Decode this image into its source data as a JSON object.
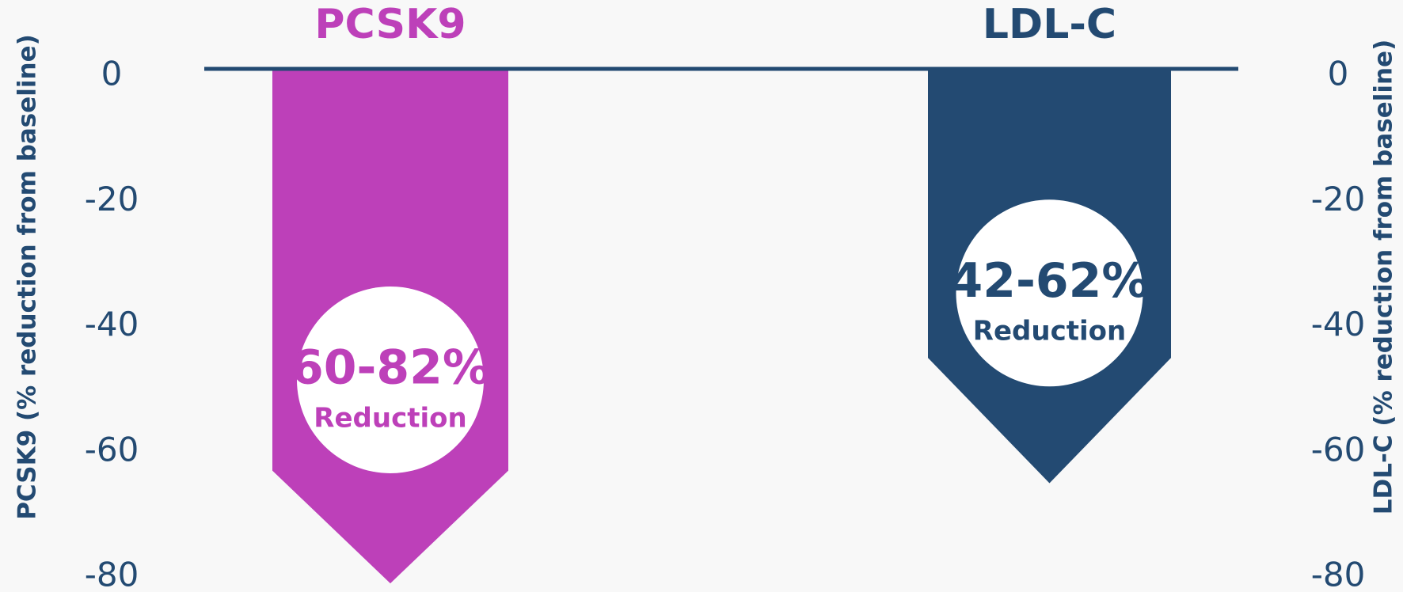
{
  "chart_data": {
    "type": "arrow",
    "ylabel": "PCSK9 (% reduction from baseline)",
    "y2label": "LDL-C (% reduction from baseline)",
    "ylim": [
      -82,
      0
    ],
    "yticks": [
      0,
      -20,
      -40,
      -60,
      -80
    ],
    "y2lim": [
      -82,
      0
    ],
    "y2ticks": [
      0,
      -20,
      -40,
      -60,
      -80
    ],
    "series": [
      {
        "name": "PCSK9",
        "color": "#bd40b9",
        "axis": "y",
        "values": [
          -81
        ],
        "shoulder": -63,
        "label": "60-82%",
        "sublabel": "Reduction"
      },
      {
        "name": "LDL-C",
        "color": "#234a72",
        "axis": "y2",
        "values": [
          -65
        ],
        "shoulder": -45,
        "label": "42-62%",
        "sublabel": "Reduction"
      }
    ]
  }
}
